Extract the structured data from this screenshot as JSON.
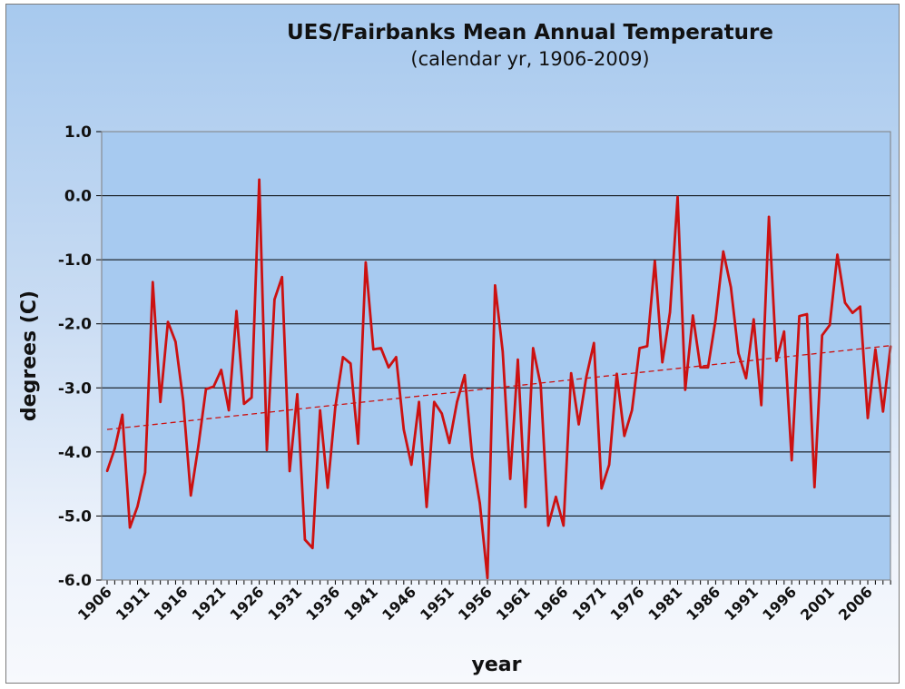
{
  "chart_data": {
    "type": "line",
    "title": "UES/Fairbanks Mean Annual Temperature",
    "subtitle": "(calendar yr, 1906-2009)",
    "xlabel": "year",
    "ylabel": "degrees (C)",
    "ylim": [
      -6.0,
      1.0
    ],
    "yticks": [
      "1.0",
      "0.0",
      "-1.0",
      "-2.0",
      "-3.0",
      "-4.0",
      "-5.0",
      "-6.0"
    ],
    "ytick_values": [
      1.0,
      0.0,
      -1.0,
      -2.0,
      -3.0,
      -4.0,
      -5.0,
      -6.0
    ],
    "xticks": [
      "1906",
      "1911",
      "1916",
      "1921",
      "1926",
      "1931",
      "1936",
      "1941",
      "1946",
      "1951",
      "1956",
      "1961",
      "1966",
      "1971",
      "1976",
      "1981",
      "1986",
      "1991",
      "1996",
      "2001",
      "2006"
    ],
    "xlim": [
      1906,
      2009
    ],
    "grid": "horizontal",
    "series": [
      {
        "color": "#cc1111",
        "x_start": 1906,
        "values": [
          -4.3,
          -3.95,
          -3.42,
          -5.18,
          -4.85,
          -4.32,
          -1.35,
          -3.22,
          -1.97,
          -2.28,
          -3.2,
          -4.68,
          -3.9,
          -3.02,
          -2.98,
          -2.72,
          -3.35,
          -1.8,
          -3.25,
          -3.15,
          0.25,
          -3.97,
          -1.62,
          -1.27,
          -4.3,
          -3.1,
          -5.37,
          -5.5,
          -3.35,
          -4.56,
          -3.3,
          -2.52,
          -2.62,
          -3.87,
          -1.04,
          -2.4,
          -2.38,
          -2.68,
          -2.52,
          -3.65,
          -4.2,
          -3.22,
          -4.86,
          -3.22,
          -3.4,
          -3.86,
          -3.22,
          -2.8,
          -4.08,
          -4.8,
          -5.97,
          -1.4,
          -2.43,
          -4.42,
          -2.56,
          -4.86,
          -2.38,
          -2.96,
          -5.15,
          -4.7,
          -5.15,
          -2.77,
          -3.57,
          -2.83,
          -2.3,
          -4.57,
          -4.2,
          -2.78,
          -3.75,
          -3.35,
          -2.38,
          -2.35,
          -1.02,
          -2.6,
          -1.82,
          -0.02,
          -3.03,
          -1.87,
          -2.68,
          -2.68,
          -1.93,
          -0.87,
          -1.43,
          -2.46,
          -2.85,
          -1.93,
          -3.27,
          -0.33,
          -2.58,
          -2.12,
          -4.13,
          -1.88,
          -1.85,
          -4.55,
          -2.18,
          -2.02,
          -0.92,
          -1.67,
          -1.83,
          -1.73,
          -3.47,
          -2.4,
          -3.37,
          -2.35
        ]
      }
    ],
    "trendline": {
      "style": "dashed",
      "color": "#cc1111",
      "start": [
        1906,
        -3.65
      ],
      "end": [
        2009,
        -2.34
      ]
    }
  }
}
